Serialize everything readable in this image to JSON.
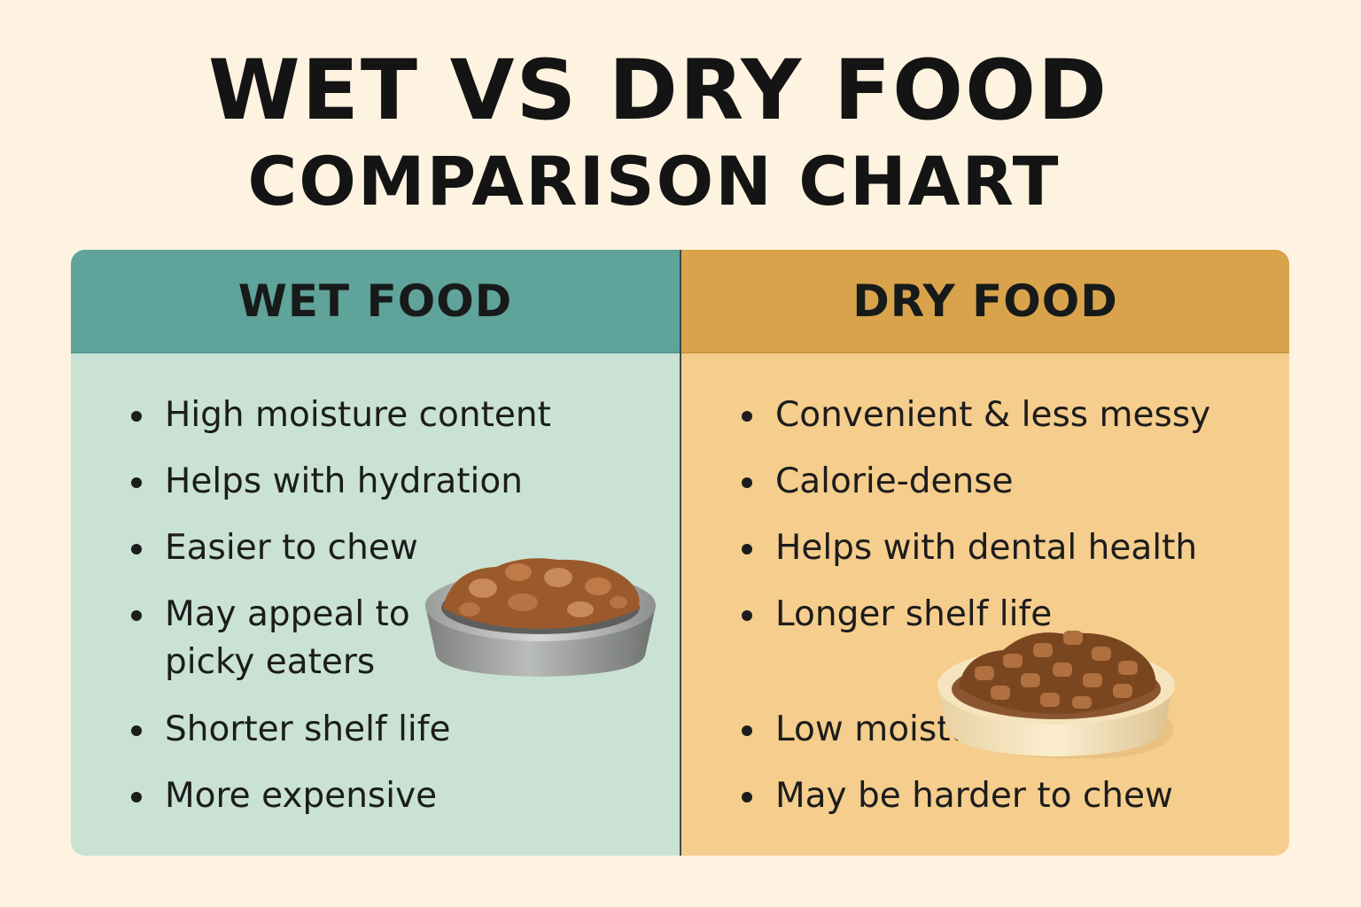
{
  "title": {
    "line1": "WET VS DRY FOOD",
    "line2": "COMPARISON CHART"
  },
  "wet": {
    "heading": "WET FOOD",
    "header_color": "#5fa39a",
    "body_color": "#c9e2d4",
    "items": [
      "High moisture content",
      "Helps with hydration",
      "Easier to chew",
      "May appeal to picky eaters",
      "Shorter shelf life",
      "More expensive"
    ],
    "icon": "wet-food-bowl-icon"
  },
  "dry": {
    "heading": "DRY FOOD",
    "header_color": "#d9a34b",
    "body_color": "#f5cd8c",
    "items": [
      "Convenient & less messy",
      "Calorie-dense",
      "Helps with dental health",
      "Longer shelf life",
      "Low moisture",
      "May be harder to chew"
    ],
    "icon": "dry-food-bowl-icon"
  }
}
